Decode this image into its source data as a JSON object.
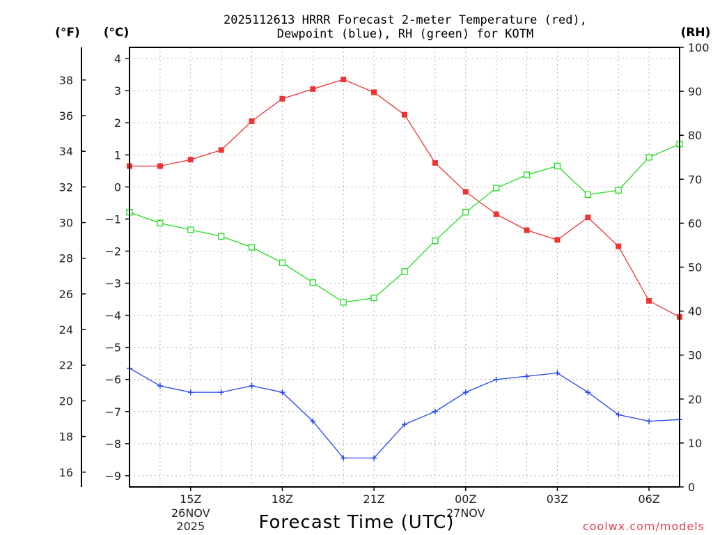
{
  "chart_data": {
    "type": "line",
    "title_line1": "2025112613 HRRR Forecast 2-meter Temperature (red),",
    "title_line2": "Dewpoint (blue), RH (green) for KOTM",
    "xlabel": "Forecast Time (UTC)",
    "credit": "coolwx.com/models",
    "unit_f": "(°F)",
    "unit_c": "(°C)",
    "unit_rh": "(RH)",
    "x_hours": [
      13,
      14,
      15,
      16,
      17,
      18,
      19,
      20,
      21,
      22,
      23,
      24,
      25,
      26,
      27,
      28,
      29,
      30,
      31
    ],
    "x_range": [
      13,
      31
    ],
    "x_ticks": [
      {
        "hour": 15,
        "label": "15Z"
      },
      {
        "hour": 18,
        "label": "18Z"
      },
      {
        "hour": 21,
        "label": "21Z"
      },
      {
        "hour": 24,
        "label": "00Z"
      },
      {
        "hour": 27,
        "label": "03Z"
      },
      {
        "hour": 30,
        "label": "06Z"
      }
    ],
    "date_labels": [
      {
        "hour": 15,
        "line1": "26NOV",
        "line2": "2025"
      },
      {
        "hour": 24,
        "line1": "27NOV",
        "line2": ""
      }
    ],
    "ylim_c": [
      -9.35,
      4.35
    ],
    "yticks_c": [
      4,
      3,
      2,
      1,
      0,
      -1,
      -2,
      -3,
      -4,
      -5,
      -6,
      -7,
      -8,
      -9
    ],
    "yticks_f": [
      38,
      36,
      34,
      32,
      30,
      28,
      26,
      24,
      22,
      20,
      18,
      16
    ],
    "ylim_rh": [
      0,
      100
    ],
    "yticks_rh": [
      100,
      90,
      80,
      70,
      60,
      50,
      40,
      30,
      20,
      10,
      0
    ],
    "series": [
      {
        "name": "Temperature",
        "color": "#ee3333",
        "marker": "filled-square",
        "axis": "c",
        "values": [
          0.65,
          0.65,
          0.85,
          1.15,
          2.05,
          2.75,
          3.05,
          3.35,
          2.95,
          2.25,
          0.75,
          -0.15,
          -0.85,
          -1.35,
          -1.65,
          -0.95,
          -1.85,
          -3.55,
          -4.05
        ]
      },
      {
        "name": "Dewpoint",
        "color": "#2244ee",
        "marker": "plus",
        "axis": "c",
        "values": [
          -5.65,
          -6.2,
          -6.4,
          -6.4,
          -6.2,
          -6.4,
          -7.3,
          -8.45,
          -8.45,
          -7.4,
          -7.0,
          -6.4,
          -6.0,
          -5.9,
          -5.8,
          -6.4,
          -7.1,
          -7.3,
          -7.25
        ]
      },
      {
        "name": "RH",
        "color": "#22dd22",
        "marker": "open-square",
        "axis": "rh",
        "values": [
          62.5,
          60.0,
          58.5,
          57.0,
          54.5,
          51.0,
          46.5,
          42.0,
          43.0,
          49.0,
          56.0,
          62.5,
          68.0,
          71.0,
          73.0,
          66.5,
          67.5,
          75.0,
          78.0
        ]
      }
    ]
  }
}
